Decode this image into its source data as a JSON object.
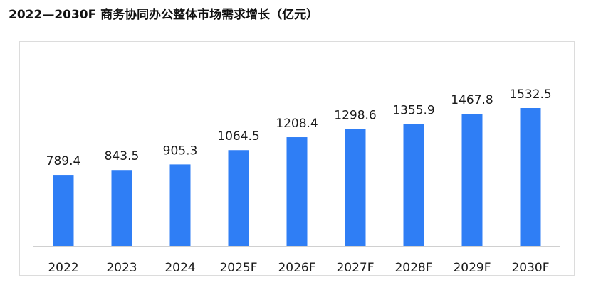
{
  "chart_data": {
    "type": "bar",
    "title": "2022—2030F  商务协同办公整体市场需求增长（亿元）",
    "categories": [
      "2022",
      "2023",
      "2024",
      "2025F",
      "2026F",
      "2027F",
      "2028F",
      "2029F",
      "2030F"
    ],
    "values": [
      789.4,
      843.5,
      905.3,
      1064.5,
      1208.4,
      1298.6,
      1355.9,
      1467.8,
      1532.5
    ],
    "data_labels": [
      "789.4",
      "843.5",
      "905.3",
      "1064.5",
      "1208.4",
      "1298.6",
      "1355.9",
      "1467.8",
      "1532.5"
    ],
    "xlabel": "",
    "ylabel": "",
    "ylim": [
      0,
      1800
    ],
    "grid": false,
    "bar_color": "#2f7ef5"
  }
}
